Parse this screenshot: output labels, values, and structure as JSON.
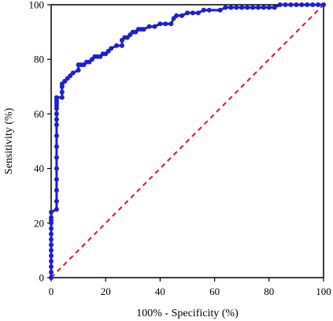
{
  "chart_data": {
    "type": "line",
    "xlabel": "100% - Specificity (%)",
    "ylabel": "Sensitivity (%)",
    "xlim": [
      0,
      100
    ],
    "ylim": [
      0,
      100
    ],
    "x_ticks": [
      "0",
      "20",
      "40",
      "60",
      "80",
      "100"
    ],
    "y_ticks": [
      "0",
      "20",
      "40",
      "60",
      "80",
      "100"
    ],
    "grid": false,
    "legend": "none",
    "series": [
      {
        "style": "solid line with circular markers",
        "color": "#1f1fd0",
        "x": [
          0,
          0,
          0,
          0,
          0,
          0,
          0,
          0,
          0,
          0,
          0,
          0,
          0,
          0,
          2,
          2,
          2,
          2,
          2,
          2,
          2,
          2,
          2,
          2,
          2,
          2,
          2,
          2,
          2,
          2,
          4,
          4,
          4,
          4,
          5,
          5,
          6,
          7,
          8,
          10,
          10,
          11,
          12,
          13,
          14,
          15,
          16,
          17,
          18,
          19,
          20,
          21,
          22,
          24,
          26,
          26,
          27,
          28,
          29,
          30,
          31,
          32,
          33,
          34,
          36,
          38,
          40,
          42,
          44,
          45,
          46,
          48,
          50,
          52,
          54,
          56,
          58,
          62,
          64,
          66,
          68,
          70,
          72,
          74,
          76,
          78,
          80,
          82,
          84,
          86,
          88,
          90,
          92,
          94,
          96,
          98,
          100
        ],
        "y": [
          0,
          2,
          4,
          6,
          8,
          10,
          12,
          14,
          16,
          18,
          20,
          21,
          22,
          24,
          25,
          28,
          32,
          36,
          40,
          44,
          48,
          52,
          56,
          58,
          60,
          62,
          63,
          64,
          65,
          66,
          66,
          68,
          70,
          71,
          72,
          72,
          73,
          74,
          75,
          76,
          78,
          78,
          78,
          79,
          79,
          80,
          81,
          81,
          81,
          82,
          82,
          83,
          84,
          85,
          85,
          87,
          88,
          88,
          89,
          90,
          90,
          91,
          91,
          91,
          92,
          92,
          93,
          93,
          93,
          95,
          96,
          96,
          97,
          97,
          97,
          98,
          98,
          98,
          99,
          99,
          99,
          99,
          99,
          99,
          99,
          99,
          99,
          99,
          100,
          100,
          100,
          100,
          100,
          100,
          100,
          100,
          100
        ]
      },
      {
        "style": "dashed reference line",
        "color": "#e01818",
        "x": [
          0,
          100
        ],
        "y": [
          0,
          100
        ]
      }
    ]
  }
}
